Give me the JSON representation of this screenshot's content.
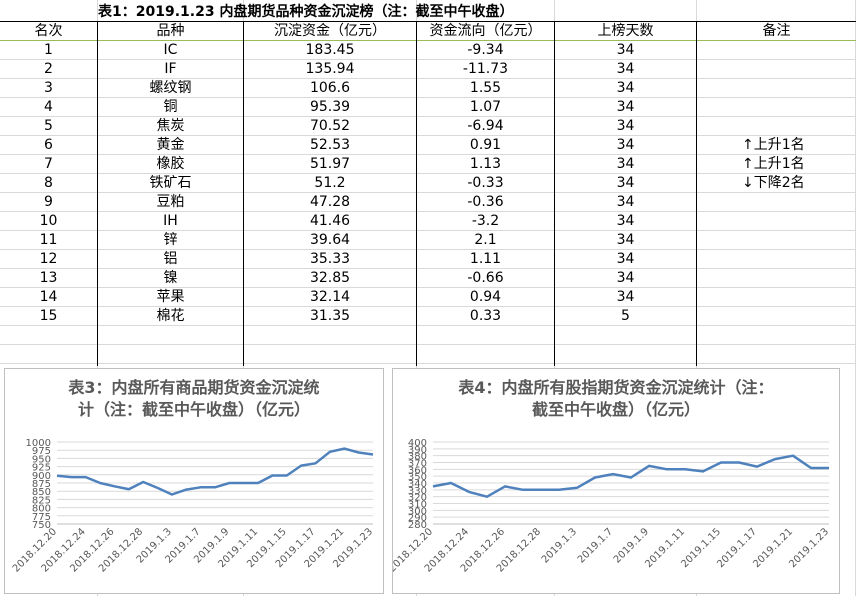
{
  "table": {
    "title": "表1：2019.1.23 内盘期货品种资金沉淀榜（注：截至中午收盘）",
    "headers": {
      "rank": "名次",
      "product": "品种",
      "capital": "沉淀资金（亿元）",
      "flow": "资金流向（亿元）",
      "days": "上榜天数",
      "note": "备注"
    },
    "rows": [
      {
        "rank": "1",
        "product": "IC",
        "capital": "183.45",
        "flow": "-9.34",
        "days": "34",
        "note": ""
      },
      {
        "rank": "2",
        "product": "IF",
        "capital": "135.94",
        "flow": "-11.73",
        "days": "34",
        "note": ""
      },
      {
        "rank": "3",
        "product": "螺纹钢",
        "capital": "106.6",
        "flow": "1.55",
        "days": "34",
        "note": ""
      },
      {
        "rank": "4",
        "product": "铜",
        "capital": "95.39",
        "flow": "1.07",
        "days": "34",
        "note": ""
      },
      {
        "rank": "5",
        "product": "焦炭",
        "capital": "70.52",
        "flow": "-6.94",
        "days": "34",
        "note": ""
      },
      {
        "rank": "6",
        "product": "黄金",
        "capital": "52.53",
        "flow": "0.91",
        "days": "34",
        "note": "上升1名",
        "arrow": "↑"
      },
      {
        "rank": "7",
        "product": "橡胶",
        "capital": "51.97",
        "flow": "1.13",
        "days": "34",
        "note": "上升1名",
        "arrow": "↑"
      },
      {
        "rank": "8",
        "product": "铁矿石",
        "capital": "51.2",
        "flow": "-0.33",
        "days": "34",
        "note": "下降2名",
        "arrow": "↓"
      },
      {
        "rank": "9",
        "product": "豆粕",
        "capital": "47.28",
        "flow": "-0.36",
        "days": "34",
        "note": ""
      },
      {
        "rank": "10",
        "product": "IH",
        "capital": "41.46",
        "flow": "-3.2",
        "days": "34",
        "note": ""
      },
      {
        "rank": "11",
        "product": "锌",
        "capital": "39.64",
        "flow": "2.1",
        "days": "34",
        "note": ""
      },
      {
        "rank": "12",
        "product": "铝",
        "capital": "35.33",
        "flow": "1.11",
        "days": "34",
        "note": ""
      },
      {
        "rank": "13",
        "product": "镍",
        "capital": "32.85",
        "flow": "-0.66",
        "days": "34",
        "note": ""
      },
      {
        "rank": "14",
        "product": "苹果",
        "capital": "32.14",
        "flow": "0.94",
        "days": "34",
        "note": ""
      },
      {
        "rank": "15",
        "product": "棉花",
        "capital": "31.35",
        "flow": "0.33",
        "days": "5",
        "note": ""
      }
    ]
  },
  "colors": {
    "line": "#4f81bd",
    "axis_text": "#595959",
    "gridline": "#d9d9d9",
    "sheet_grid": "#d9d9d9",
    "header_rule": "#9bbb59"
  },
  "chart_data": [
    {
      "type": "line",
      "title": "表3：内盘所有商品期货资金沉淀统计（注：截至中午收盘）（亿元）",
      "title_lines": [
        "表3：内盘所有商品期货资金沉淀统",
        "计（注：截至中午收盘）（亿元）"
      ],
      "xlabel": "",
      "ylabel": "",
      "ylim": [
        750,
        1000
      ],
      "yticks": [
        750,
        775,
        800,
        825,
        850,
        875,
        900,
        925,
        950,
        975,
        1000
      ],
      "x": [
        "2018.12.20",
        "2018.12.21",
        "2018.12.24",
        "2018.12.25",
        "2018.12.26",
        "2018.12.27",
        "2018.12.28",
        "2019.1.2",
        "2019.1.3",
        "2019.1.4",
        "2019.1.7",
        "2019.1.8",
        "2019.1.9",
        "2019.1.10",
        "2019.1.11",
        "2019.1.14",
        "2019.1.15",
        "2019.1.16",
        "2019.1.17",
        "2019.1.18",
        "2019.1.21",
        "2019.1.22",
        "2019.1.23"
      ],
      "xtick_labels": [
        "2018.12.20",
        "2018.12.24",
        "2018.12.26",
        "2018.12.28",
        "2019.1.3",
        "2019.1.7",
        "2019.1.9",
        "2019.1.11",
        "2019.1.15",
        "2019.1.17",
        "2019.1.21",
        "2019.1.23"
      ],
      "series": [
        {
          "values": [
            897,
            893,
            893,
            875,
            865,
            856,
            878,
            860,
            840,
            855,
            862,
            862,
            875,
            875,
            875,
            898,
            898,
            928,
            935,
            970,
            980,
            968,
            962
          ]
        }
      ],
      "grid": true,
      "legend": "none"
    },
    {
      "type": "line",
      "title": "表4：内盘所有股指期货资金沉淀统计（注：截至中午收盘）（亿元）",
      "title_lines": [
        "表4：内盘所有股指期货资金沉淀统计（注：",
        "截至中午收盘）（亿元）"
      ],
      "xlabel": "",
      "ylabel": "",
      "ylim": [
        280,
        400
      ],
      "yticks": [
        280,
        290,
        300,
        310,
        320,
        330,
        340,
        350,
        360,
        370,
        380,
        390,
        400
      ],
      "x": [
        "2018.12.20",
        "2018.12.21",
        "2018.12.24",
        "2018.12.25",
        "2018.12.26",
        "2018.12.27",
        "2018.12.28",
        "2019.1.2",
        "2019.1.3",
        "2019.1.4",
        "2019.1.7",
        "2019.1.8",
        "2019.1.9",
        "2019.1.10",
        "2019.1.11",
        "2019.1.14",
        "2019.1.15",
        "2019.1.16",
        "2019.1.17",
        "2019.1.18",
        "2019.1.21",
        "2019.1.22",
        "2019.1.23"
      ],
      "xtick_labels": [
        "2018.12.20",
        "2018.12.24",
        "2018.12.26",
        "2018.12.28",
        "2019.1.3",
        "2019.1.7",
        "2019.1.9",
        "2019.1.11",
        "2019.1.15",
        "2019.1.17",
        "2019.1.21",
        "2019.1.23"
      ],
      "series": [
        {
          "values": [
            335,
            340,
            327,
            320,
            335,
            330,
            330,
            330,
            333,
            348,
            353,
            348,
            365,
            360,
            360,
            357,
            370,
            370,
            364,
            375,
            380,
            362,
            362
          ]
        }
      ],
      "grid": true,
      "legend": "none"
    }
  ]
}
